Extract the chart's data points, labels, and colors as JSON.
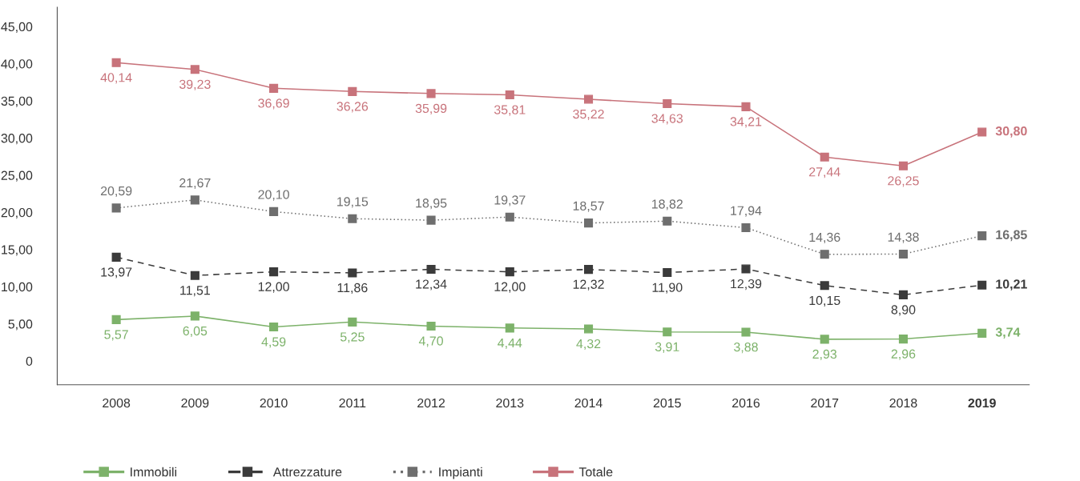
{
  "chart_data": {
    "type": "line",
    "categories": [
      "2008",
      "2009",
      "2010",
      "2011",
      "2012",
      "2013",
      "2014",
      "2015",
      "2016",
      "2017",
      "2018",
      "2019"
    ],
    "series": [
      {
        "name": "Immobili",
        "color": "#7db26a",
        "line_style": "solid",
        "values": [
          5.57,
          6.05,
          4.59,
          5.25,
          4.7,
          4.44,
          4.32,
          3.91,
          3.88,
          2.93,
          2.96,
          3.74
        ],
        "value_labels": [
          "5,57",
          "6,05",
          "4,59",
          "5,25",
          "4,70",
          "4,44",
          "4,32",
          "3,91",
          "3,88",
          "2,93",
          "2,96",
          "3,74"
        ]
      },
      {
        "name": "Attrezzature",
        "color": "#3b3b3b",
        "line_style": "dashed",
        "values": [
          13.97,
          11.51,
          12.0,
          11.86,
          12.34,
          12.0,
          12.32,
          11.9,
          12.39,
          10.15,
          8.9,
          10.21
        ],
        "value_labels": [
          "13,97",
          "11,51",
          "12,00",
          "11,86",
          "12,34",
          "12,00",
          "12,32",
          "11,90",
          "12,39",
          "10,15",
          "8,90",
          "10,21"
        ]
      },
      {
        "name": "Impianti",
        "color": "#6e6e6e",
        "line_style": "dotted",
        "values": [
          20.59,
          21.67,
          20.1,
          19.15,
          18.95,
          19.37,
          18.57,
          18.82,
          17.94,
          14.36,
          14.38,
          16.85
        ],
        "value_labels": [
          "20,59",
          "21,67",
          "20,10",
          "19,15",
          "18,95",
          "19,37",
          "18,57",
          "18,82",
          "17,94",
          "14,36",
          "14,38",
          "16,85"
        ]
      },
      {
        "name": "Totale",
        "color": "#c8737b",
        "line_style": "solid",
        "values": [
          40.14,
          39.23,
          36.69,
          36.26,
          35.99,
          35.81,
          35.22,
          34.63,
          34.21,
          27.44,
          26.25,
          30.8
        ],
        "value_labels": [
          "40,14",
          "39,23",
          "36,69",
          "36,26",
          "35,99",
          "35,81",
          "35,22",
          "34,63",
          "34,21",
          "27,44",
          "26,25",
          "30,80"
        ]
      }
    ],
    "ylim": [
      -3.2,
      47.6
    ],
    "yticks": [
      {
        "value": 0,
        "label": "0"
      },
      {
        "value": 5,
        "label": "5,00"
      },
      {
        "value": 10,
        "label": "10,00"
      },
      {
        "value": 15,
        "label": "15,00"
      },
      {
        "value": 20,
        "label": "20,00"
      },
      {
        "value": 25,
        "label": "25,00"
      },
      {
        "value": 30,
        "label": "30,00"
      },
      {
        "value": 35,
        "label": "35,00"
      },
      {
        "value": 40,
        "label": "40,00"
      },
      {
        "value": 45,
        "label": "45,00"
      }
    ],
    "marker": "square",
    "grid": false,
    "legend": "bottom"
  }
}
